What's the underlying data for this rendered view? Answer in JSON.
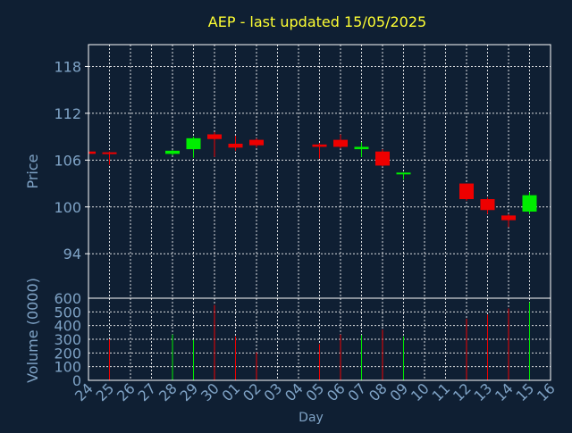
{
  "colors": {
    "background": "#0f1f33",
    "title": "#ffff33",
    "axis_text": "#7fa3c6",
    "frame": "#ffffff",
    "grid": "#ffffff",
    "up": "#00ee00",
    "down": "#ee0000"
  },
  "chart_data": [
    {
      "type": "candlestick",
      "title": "AEP - last updated 15/05/2025",
      "ylabel": "Price",
      "ylim": [
        88.3,
        120.8
      ],
      "yticks": [
        94,
        100,
        106,
        112,
        118
      ],
      "grid": true,
      "candles": [
        {
          "day": "24",
          "open": 107.1,
          "high": 107.2,
          "low": 106.8,
          "close": 106.8
        },
        {
          "day": "25",
          "open": 107.0,
          "high": 107.1,
          "low": 105.4,
          "close": 106.8
        },
        {
          "day": "28",
          "open": 106.8,
          "high": 107.3,
          "low": 106.6,
          "close": 107.2
        },
        {
          "day": "29",
          "open": 107.4,
          "high": 109.0,
          "low": 106.3,
          "close": 108.8
        },
        {
          "day": "30",
          "open": 109.3,
          "high": 109.6,
          "low": 106.4,
          "close": 108.7
        },
        {
          "day": "01",
          "open": 108.1,
          "high": 109.1,
          "low": 107.2,
          "close": 107.6
        },
        {
          "day": "02",
          "open": 108.6,
          "high": 108.8,
          "low": 107.6,
          "close": 107.9
        },
        {
          "day": "05",
          "open": 108.0,
          "high": 108.2,
          "low": 106.2,
          "close": 107.7
        },
        {
          "day": "06",
          "open": 108.6,
          "high": 109.3,
          "low": 107.5,
          "close": 107.7
        },
        {
          "day": "07",
          "open": 107.4,
          "high": 108.3,
          "low": 106.4,
          "close": 107.7
        },
        {
          "day": "08",
          "open": 107.1,
          "high": 107.4,
          "low": 105.2,
          "close": 105.3
        },
        {
          "day": "09",
          "open": 104.2,
          "high": 104.4,
          "low": 103.5,
          "close": 104.4
        },
        {
          "day": "12",
          "open": 103.0,
          "high": 103.0,
          "low": 100.8,
          "close": 101.0
        },
        {
          "day": "13",
          "open": 101.0,
          "high": 101.2,
          "low": 99.1,
          "close": 99.6
        },
        {
          "day": "14",
          "open": 98.9,
          "high": 99.1,
          "low": 97.4,
          "close": 98.3
        },
        {
          "day": "15",
          "open": 99.4,
          "high": 101.9,
          "low": 99.1,
          "close": 101.5
        }
      ]
    },
    {
      "type": "bar",
      "ylabel": "Volume (0000)",
      "xlabel": "Day",
      "ylim": [
        0,
        600
      ],
      "yticks": [
        0,
        100,
        200,
        300,
        400,
        500,
        600
      ],
      "grid": true,
      "categories": [
        "24",
        "25",
        "26",
        "27",
        "28",
        "29",
        "30",
        "01",
        "02",
        "03",
        "04",
        "05",
        "06",
        "07",
        "08",
        "09",
        "10",
        "11",
        "12",
        "13",
        "14",
        "15",
        "16"
      ],
      "volumes": [
        {
          "day": "25",
          "value": 300,
          "direction": "down"
        },
        {
          "day": "28",
          "value": 335,
          "direction": "up"
        },
        {
          "day": "29",
          "value": 295,
          "direction": "up"
        },
        {
          "day": "30",
          "value": 550,
          "direction": "down"
        },
        {
          "day": "01",
          "value": 320,
          "direction": "down"
        },
        {
          "day": "02",
          "value": 205,
          "direction": "down"
        },
        {
          "day": "05",
          "value": 265,
          "direction": "down"
        },
        {
          "day": "06",
          "value": 335,
          "direction": "down"
        },
        {
          "day": "07",
          "value": 330,
          "direction": "up"
        },
        {
          "day": "08",
          "value": 370,
          "direction": "down"
        },
        {
          "day": "09",
          "value": 320,
          "direction": "up"
        },
        {
          "day": "12",
          "value": 450,
          "direction": "down"
        },
        {
          "day": "13",
          "value": 480,
          "direction": "down"
        },
        {
          "day": "14",
          "value": 525,
          "direction": "down"
        },
        {
          "day": "15",
          "value": 570,
          "direction": "up"
        }
      ]
    }
  ]
}
